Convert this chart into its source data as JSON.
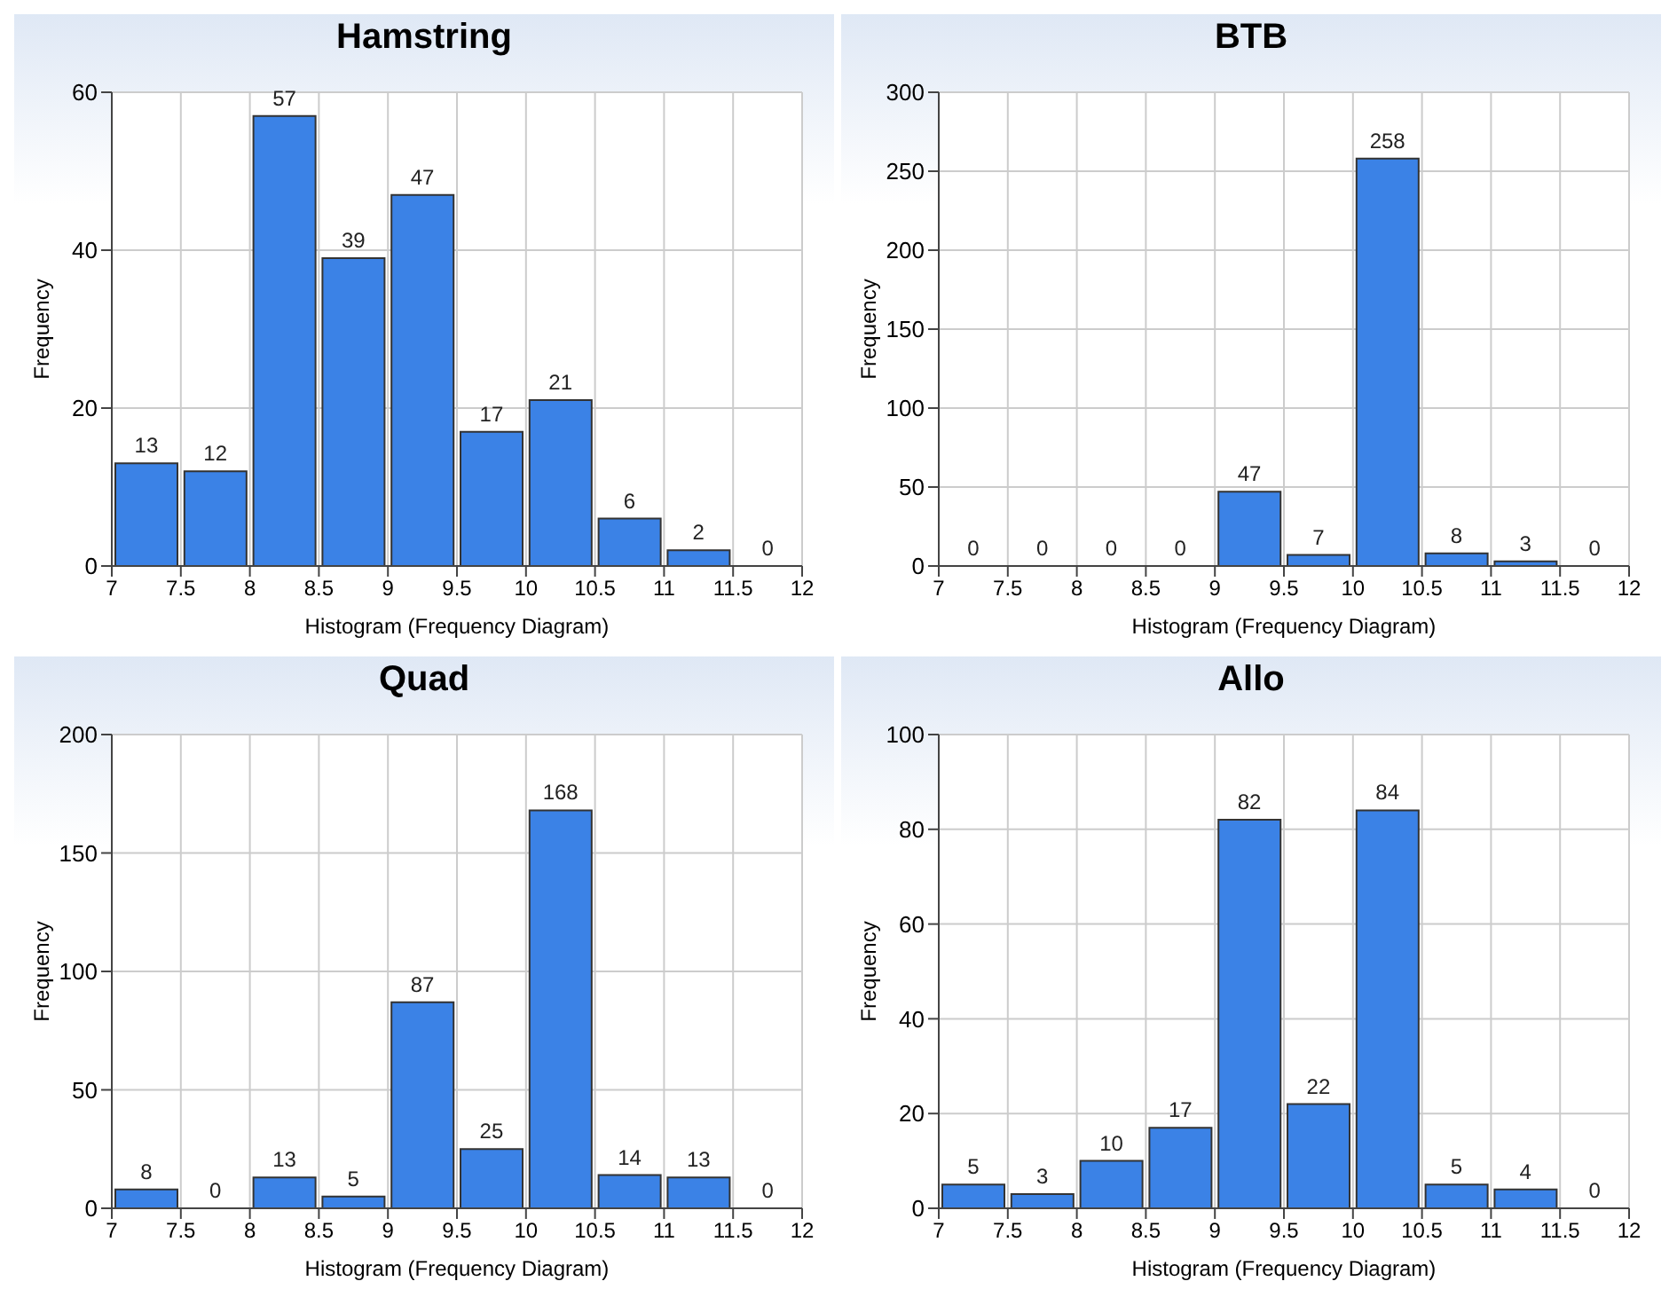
{
  "chart_data": [
    {
      "type": "histogram",
      "title": "Hamstring",
      "xlabel": "Histogram (Frequency Diagram)",
      "ylabel": "Frequency",
      "bins": [
        7,
        7.5,
        8,
        8.5,
        9,
        9.5,
        10,
        10.5,
        11,
        11.5,
        12
      ],
      "values": [
        13,
        12,
        57,
        39,
        47,
        17,
        21,
        6,
        2,
        0
      ],
      "color": "#3b82e6",
      "xlim": [
        7,
        12
      ],
      "xticks": [
        7,
        7.5,
        8,
        8.5,
        9,
        9.5,
        10,
        10.5,
        11,
        11.5,
        12
      ],
      "ylim": [
        0,
        60
      ],
      "yticks": [
        0,
        20,
        40,
        60
      ],
      "grid": true,
      "data_labels": true
    },
    {
      "type": "histogram",
      "title": "BTB",
      "xlabel": "Histogram (Frequency Diagram)",
      "ylabel": "Frequency",
      "bins": [
        7,
        7.5,
        8,
        8.5,
        9,
        9.5,
        10,
        10.5,
        11,
        11.5,
        12
      ],
      "values": [
        0,
        0,
        0,
        0,
        47,
        7,
        258,
        8,
        3,
        0
      ],
      "color": "#3b82e6",
      "xlim": [
        7,
        12
      ],
      "xticks": [
        7,
        7.5,
        8,
        8.5,
        9,
        9.5,
        10,
        10.5,
        11,
        11.5,
        12
      ],
      "ylim": [
        0,
        300
      ],
      "yticks": [
        0,
        50,
        100,
        150,
        200,
        250,
        300
      ],
      "grid": true,
      "data_labels": true
    },
    {
      "type": "histogram",
      "title": "Quad",
      "xlabel": "Histogram (Frequency Diagram)",
      "ylabel": "Frequency",
      "bins": [
        7,
        7.5,
        8,
        8.5,
        9,
        9.5,
        10,
        10.5,
        11,
        11.5,
        12
      ],
      "values": [
        8,
        0,
        13,
        5,
        87,
        25,
        168,
        14,
        13,
        0
      ],
      "color": "#3b82e6",
      "xlim": [
        7,
        12
      ],
      "xticks": [
        7,
        7.5,
        8,
        8.5,
        9,
        9.5,
        10,
        10.5,
        11,
        11.5,
        12
      ],
      "ylim": [
        0,
        200
      ],
      "yticks": [
        0,
        50,
        100,
        150,
        200
      ],
      "grid": true,
      "data_labels": true
    },
    {
      "type": "histogram",
      "title": "Allo",
      "xlabel": "Histogram (Frequency Diagram)",
      "ylabel": "Frequency",
      "bins": [
        7,
        7.5,
        8,
        8.5,
        9,
        9.5,
        10,
        10.5,
        11,
        11.5,
        12
      ],
      "values": [
        5,
        3,
        10,
        17,
        82,
        22,
        84,
        5,
        4,
        0
      ],
      "color": "#3b82e6",
      "xlim": [
        7,
        12
      ],
      "xticks": [
        7,
        7.5,
        8,
        8.5,
        9,
        9.5,
        10,
        10.5,
        11,
        11.5,
        12
      ],
      "ylim": [
        0,
        100
      ],
      "yticks": [
        0,
        20,
        40,
        60,
        80,
        100
      ],
      "grid": true,
      "data_labels": true
    }
  ]
}
